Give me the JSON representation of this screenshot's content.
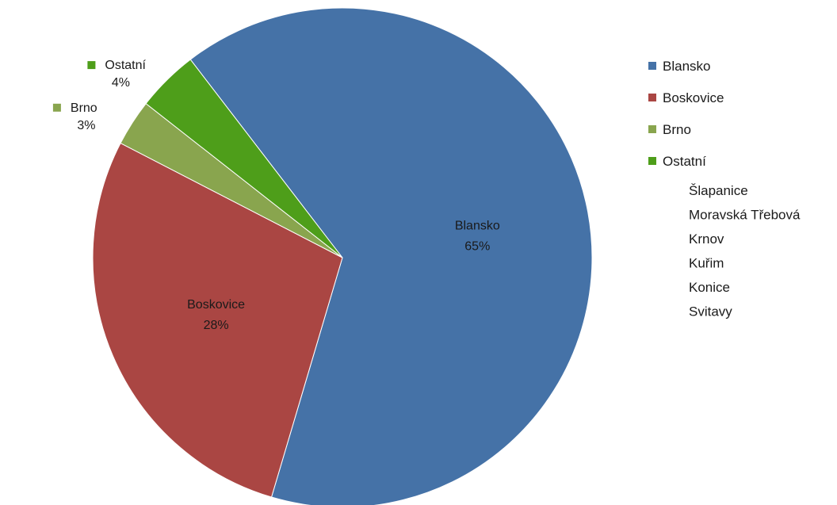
{
  "chart_data": {
    "type": "pie",
    "title": "",
    "slices": [
      {
        "label": "Blansko",
        "value": 65,
        "display": "65%",
        "color": "#4572a7"
      },
      {
        "label": "Boskovice",
        "value": 28,
        "display": "28%",
        "color": "#aa4643"
      },
      {
        "label": "Brno",
        "value": 3,
        "display": "3%",
        "color": "#89a54e"
      },
      {
        "label": "Ostatní",
        "value": 4,
        "display": "4%",
        "color": "#4e9e1a"
      }
    ],
    "legend": {
      "position": "right",
      "entries": [
        {
          "label": "Blansko",
          "color": "#4572a7"
        },
        {
          "label": "Boskovice",
          "color": "#aa4643"
        },
        {
          "label": "Brno",
          "color": "#89a54e"
        },
        {
          "label": "Ostatní",
          "color": "#4e9e1a"
        }
      ],
      "ostatni_items": [
        "Šlapanice",
        "Moravská Třebová",
        "Krnov",
        "Kuřim",
        "Konice",
        "Svitavy"
      ]
    }
  }
}
